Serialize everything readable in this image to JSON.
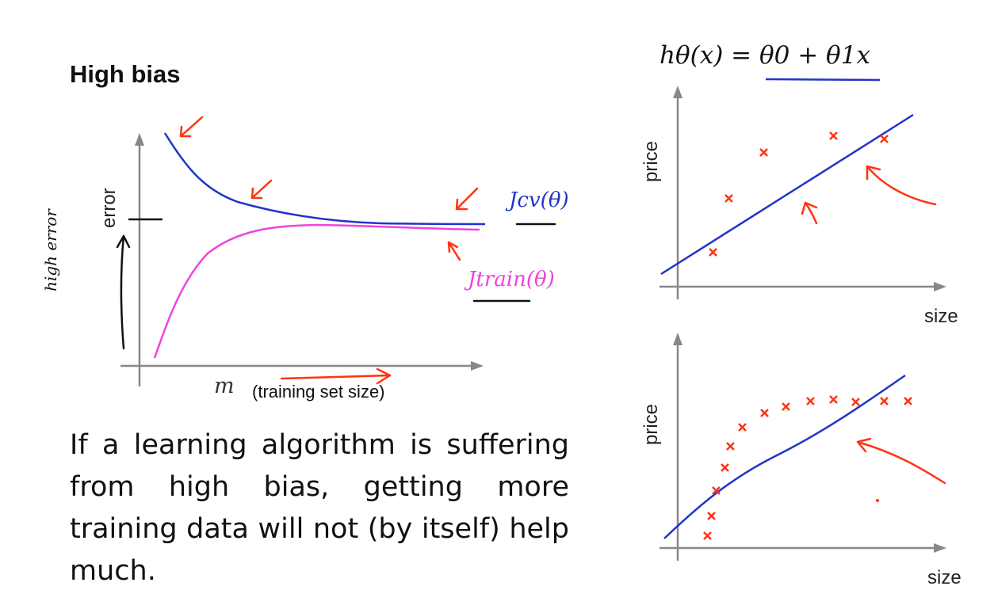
{
  "slide": {
    "title": "High bias",
    "paragraph": "If a learning algorithm is suffering from high bias, getting more training data will not (by itself) help much."
  },
  "left_plot": {
    "x_label_symbol": "m",
    "x_label_text": "(training set size)",
    "y_label": "error",
    "handwritten_y": "high error",
    "cv_curve_label": "Jcv(θ)",
    "train_curve_label": "Jtrain(θ)",
    "colors": {
      "cv": "#2233cc",
      "train": "#ee44dd",
      "annotation": "#ff3311"
    }
  },
  "right_plots": {
    "hypothesis": "hθ(x) = θ0 + θ1x",
    "top": {
      "x_label": "size",
      "y_label": "price"
    },
    "bottom": {
      "x_label": "size",
      "y_label": "price"
    },
    "colors": {
      "fit_line": "#2233cc",
      "points": "#ff3311"
    }
  }
}
